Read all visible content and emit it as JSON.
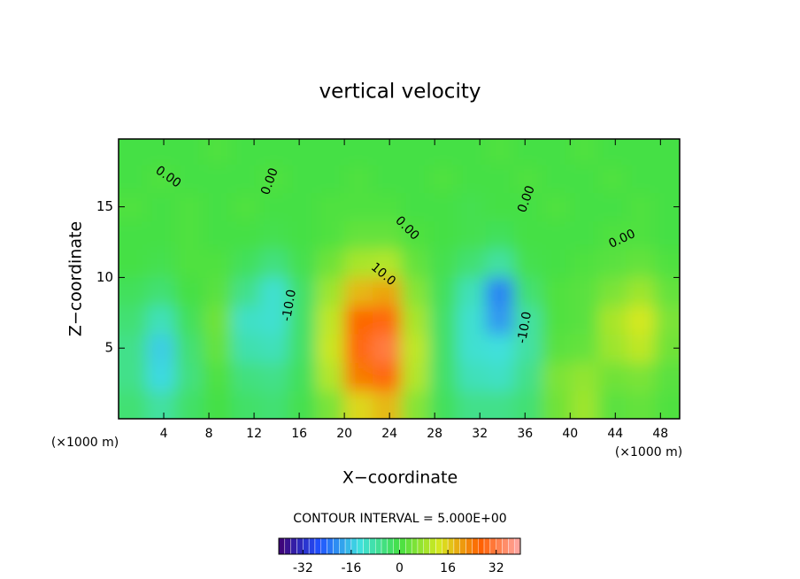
{
  "chart_data": {
    "type": "contour",
    "title": "vertical velocity",
    "x_label": "X−coordinate",
    "y_label": "Z−coordinate",
    "x_unit": "(×1000 m)",
    "contour_interval_text": "CONTOUR INTERVAL = 5.000E+00",
    "xlim": [
      0,
      49.7
    ],
    "ylim": [
      0,
      19.8
    ],
    "xticks": [
      4,
      8,
      12,
      16,
      20,
      24,
      28,
      32,
      36,
      40,
      44,
      48
    ],
    "yticks": [
      5,
      10,
      15
    ],
    "clim": [
      -40,
      40
    ],
    "cticks": [
      -32,
      -16,
      0,
      16,
      32
    ],
    "colormap": [
      "#400070",
      "#2050ff",
      "#40e0e0",
      "#44e044",
      "#d8e820",
      "#ff6000",
      "#ffa8a8"
    ],
    "contour_labels": [
      {
        "value": 0,
        "label": "0.00"
      },
      {
        "value": 0,
        "label": "0.00"
      },
      {
        "value": 0,
        "label": "0.00"
      },
      {
        "value": 0,
        "label": "0.00"
      },
      {
        "value": 0,
        "label": "0.00"
      },
      {
        "value": 10,
        "label": "10.0"
      },
      {
        "value": -10,
        "label": "-10.0"
      },
      {
        "value": -10,
        "label": "-10.0"
      }
    ],
    "x": [
      1.25,
      3.75,
      6.25,
      8.75,
      11.25,
      13.75,
      16.25,
      18.75,
      21.25,
      23.75,
      26.25,
      28.75,
      31.25,
      33.75,
      36.25,
      38.75,
      41.25,
      43.75,
      46.25,
      48.75
    ],
    "y": [
      1,
      3,
      5,
      7,
      9,
      11,
      13,
      15,
      17,
      19
    ],
    "z": [
      [
        -4,
        -8,
        -3,
        0,
        -3,
        -4,
        -1,
        5,
        15,
        18,
        6,
        -2,
        -6,
        -6,
        -4,
        4,
        8,
        2,
        3,
        1
      ],
      [
        -6,
        -14,
        -5,
        1,
        -5,
        -6,
        -2,
        10,
        24,
        28,
        10,
        -3,
        -10,
        -11,
        -6,
        5,
        7,
        4,
        5,
        2
      ],
      [
        -6,
        -15,
        -4,
        3,
        -9,
        -10,
        -3,
        12,
        28,
        32,
        11,
        -3,
        -12,
        -13,
        -8,
        2,
        3,
        8,
        11,
        4
      ],
      [
        -4,
        -10,
        -2,
        4,
        -11,
        -12,
        -3,
        11,
        26,
        28,
        9,
        -3,
        -12,
        -20,
        -8,
        1,
        2,
        9,
        13,
        5
      ],
      [
        -2,
        -4,
        0,
        2,
        -6,
        -12,
        -3,
        8,
        18,
        20,
        6,
        -2,
        -10,
        -22,
        -4,
        1,
        2,
        5,
        8,
        3
      ],
      [
        0,
        -1,
        1,
        1,
        -2,
        -5,
        -1,
        4,
        9,
        10,
        3,
        -1,
        -4,
        -8,
        -1,
        0,
        1,
        2,
        3,
        1
      ],
      [
        0,
        0,
        1,
        0,
        0,
        -1,
        0,
        1,
        3,
        3,
        1,
        0,
        -1,
        -2,
        0,
        0,
        0,
        1,
        1,
        0
      ],
      [
        1,
        0,
        1,
        0,
        1,
        0,
        0,
        1,
        1,
        1,
        0,
        0,
        -1,
        0,
        0,
        1,
        0,
        0,
        1,
        0
      ],
      [
        0,
        1,
        0,
        0,
        0,
        1,
        0,
        0,
        1,
        0,
        0,
        1,
        0,
        0,
        1,
        0,
        0,
        1,
        0,
        0
      ],
      [
        0,
        0,
        0,
        1,
        0,
        0,
        0,
        0,
        0,
        0,
        0,
        0,
        0,
        1,
        0,
        0,
        1,
        0,
        0,
        0
      ]
    ]
  }
}
